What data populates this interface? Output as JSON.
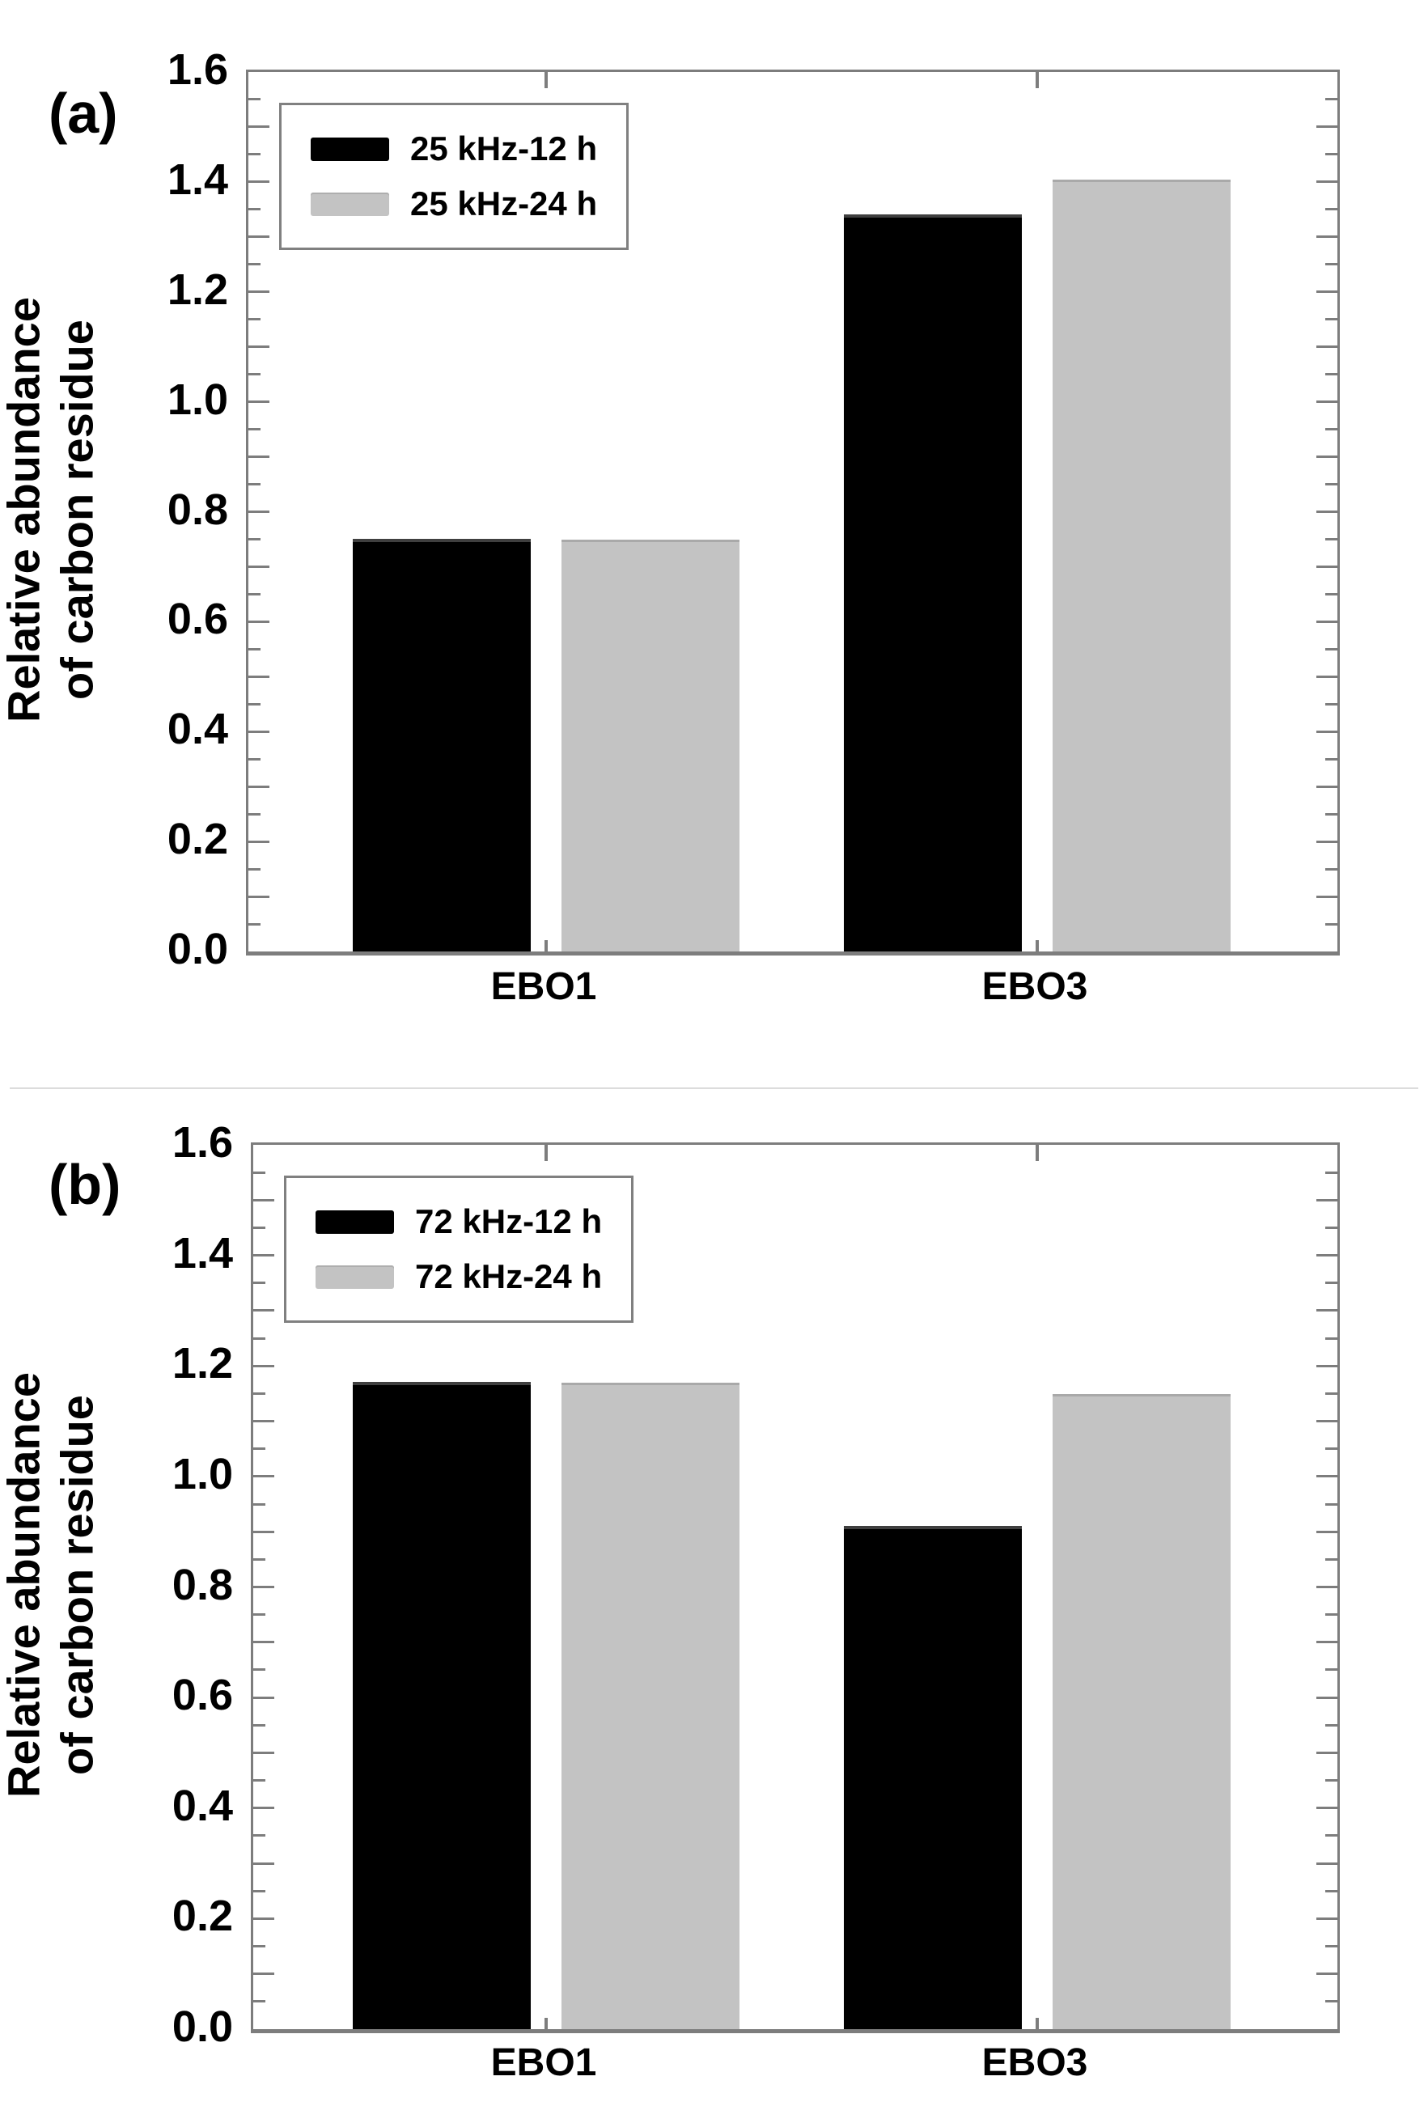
{
  "figure_colors": {
    "series_black": "#000000",
    "series_gray": "#c3c3c3",
    "axis_frame": "#7d7d7d",
    "text": "#000000"
  },
  "chart_data": [
    {
      "type": "bar",
      "panel_label": "(a)",
      "title": "",
      "xlabel": "",
      "ylabel_lines": [
        "Relative abundance",
        "of carbon residue"
      ],
      "categories": [
        "EBO1",
        "EBO3"
      ],
      "series": [
        {
          "name": "25 kHz-12 h",
          "color": "#000000",
          "values": [
            0.745,
            1.335
          ]
        },
        {
          "name": "25 kHz-24 h",
          "color": "#c3c3c3",
          "values": [
            0.745,
            1.4
          ]
        }
      ],
      "ylim": [
        0,
        1.6
      ],
      "ytick_labels": [
        "0.0",
        "0.2",
        "0.4",
        "0.6",
        "0.8",
        "1.0",
        "1.2",
        "1.4",
        "1.6"
      ],
      "ytick_step": 0.2,
      "minor_tick_step": 0.05,
      "grid": false,
      "legend_position": "top-left"
    },
    {
      "type": "bar",
      "panel_label": "(b)",
      "title": "",
      "xlabel": "",
      "ylabel_lines": [
        "Relative abundance",
        "of carbon residue"
      ],
      "categories": [
        "EBO1",
        "EBO3"
      ],
      "series": [
        {
          "name": "72 kHz-12 h",
          "color": "#000000",
          "values": [
            1.165,
            0.905
          ]
        },
        {
          "name": "72 kHz-24 h",
          "color": "#c3c3c3",
          "values": [
            1.165,
            1.145
          ]
        }
      ],
      "ylim": [
        0,
        1.6
      ],
      "ytick_labels": [
        "0.0",
        "0.2",
        "0.4",
        "0.6",
        "0.8",
        "1.0",
        "1.2",
        "1.4",
        "1.6"
      ],
      "ytick_step": 0.2,
      "minor_tick_step": 0.05,
      "grid": false,
      "legend_position": "top-left"
    }
  ]
}
